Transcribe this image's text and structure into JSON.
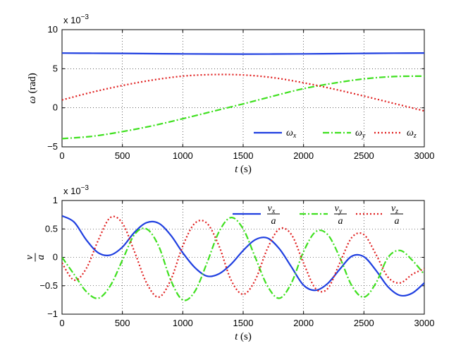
{
  "chart_data": [
    {
      "type": "line",
      "xlabel": "t (s)",
      "ylabel": "ω (rad)",
      "xlim": [
        0,
        3000
      ],
      "ylim": [
        -0.005,
        0.01
      ],
      "xticks": [
        "0",
        "500",
        "1000",
        "1500",
        "2000",
        "2500",
        "3000"
      ],
      "yticks": [
        "−5",
        "0",
        "5",
        "10"
      ],
      "scale_label": "x 10",
      "scale_exp": "−3",
      "grid": true,
      "legend": "bottom-right",
      "x": [
        0,
        250,
        500,
        750,
        1000,
        1250,
        1500,
        1750,
        2000,
        2250,
        2500,
        2750,
        3000
      ],
      "series": [
        {
          "name": "ωx",
          "sym": "ω",
          "sub": "x",
          "color": "#1f3fe0",
          "style": "solid",
          "values": [
            0.007,
            0.00698,
            0.00696,
            0.00693,
            0.0069,
            0.00688,
            0.00687,
            0.00688,
            0.0069,
            0.00693,
            0.00696,
            0.00699,
            0.00701
          ]
        },
        {
          "name": "ωy",
          "sym": "ω",
          "sub": "y",
          "color": "#3fe01f",
          "style": "dashdot",
          "values": [
            -0.00395,
            -0.00365,
            -0.00305,
            -0.0023,
            -0.0014,
            -0.00045,
            0.0005,
            0.0015,
            0.00245,
            0.00315,
            0.0037,
            0.004,
            0.00405
          ]
        },
        {
          "name": "ωz",
          "sym": "ω",
          "sub": "z",
          "color": "#e01f1f",
          "style": "dotted",
          "values": [
            0.001,
            0.002,
            0.00285,
            0.00355,
            0.00405,
            0.00425,
            0.0042,
            0.00385,
            0.0032,
            0.0024,
            0.0015,
            0.00055,
            -0.0004
          ]
        }
      ]
    },
    {
      "type": "line",
      "xlabel": "t (s)",
      "ylabel": "v/a",
      "xlim": [
        0,
        3000
      ],
      "ylim": [
        -0.001,
        0.001
      ],
      "xticks": [
        "0",
        "500",
        "1000",
        "1500",
        "2000",
        "2500",
        "3000"
      ],
      "yticks": [
        "−1",
        "−0.5",
        "0",
        "0.5",
        "1"
      ],
      "scale_label": "x 10",
      "scale_exp": "−3",
      "grid": true,
      "legend": "top-right",
      "x": [
        0,
        100,
        200,
        300,
        400,
        500,
        600,
        700,
        800,
        900,
        1000,
        1100,
        1200,
        1300,
        1400,
        1500,
        1600,
        1700,
        1800,
        1900,
        2000,
        2100,
        2200,
        2300,
        2400,
        2500,
        2600,
        2700,
        2800,
        2900,
        3000
      ],
      "series": [
        {
          "name": "vx/a",
          "num": "v",
          "sub": "x",
          "den": "a",
          "color": "#1f3fe0",
          "style": "solid",
          "values": [
            0.00073,
            0.00062,
            0.00031,
            8e-05,
            4e-05,
            0.00018,
            0.00044,
            0.00061,
            0.0006,
            0.00039,
            8e-05,
            -0.00018,
            -0.00033,
            -0.00029,
            -0.00012,
            0.00012,
            0.00031,
            0.00034,
            0.00015,
            -0.00017,
            -0.00049,
            -0.00058,
            -0.00046,
            -0.00021,
            2e-05,
            1e-05,
            -0.00023,
            -0.00052,
            -0.00067,
            -0.00063,
            -0.00045
          ]
        },
        {
          "name": "vy/a",
          "num": "v",
          "sub": "y",
          "den": "a",
          "color": "#3fe01f",
          "style": "dashdot",
          "values": [
            0.0,
            -0.0003,
            -0.0006,
            -0.00072,
            -0.0005,
            -5e-05,
            0.0004,
            0.0005,
            0.0002,
            -0.0004,
            -0.00075,
            -0.0006,
            -0.0001,
            0.00045,
            0.0007,
            0.0005,
            0.0,
            -0.0005,
            -0.00072,
            -0.00045,
            0.0001,
            0.00045,
            0.0004,
            0.0,
            -0.0005,
            -0.0007,
            -0.00045,
            0.0,
            0.00012,
            -5e-05,
            -0.0003
          ]
        },
        {
          "name": "vz/a",
          "num": "v",
          "sub": "z",
          "den": "a",
          "color": "#e01f1f",
          "style": "dotted",
          "values": [
            -0.0001,
            -0.0004,
            -0.0002,
            0.0003,
            0.0007,
            0.0006,
            0.0001,
            -0.00045,
            -0.0007,
            -0.0004,
            0.0002,
            0.0006,
            0.0006,
            0.0002,
            -0.0004,
            -0.00065,
            -0.0004,
            0.00015,
            0.0005,
            0.0004,
            -0.0001,
            -0.00055,
            -0.00055,
            -0.0001,
            0.00035,
            0.0004,
            5e-05,
            -0.00035,
            -0.00045,
            -0.0003,
            -0.0002
          ]
        }
      ]
    }
  ]
}
